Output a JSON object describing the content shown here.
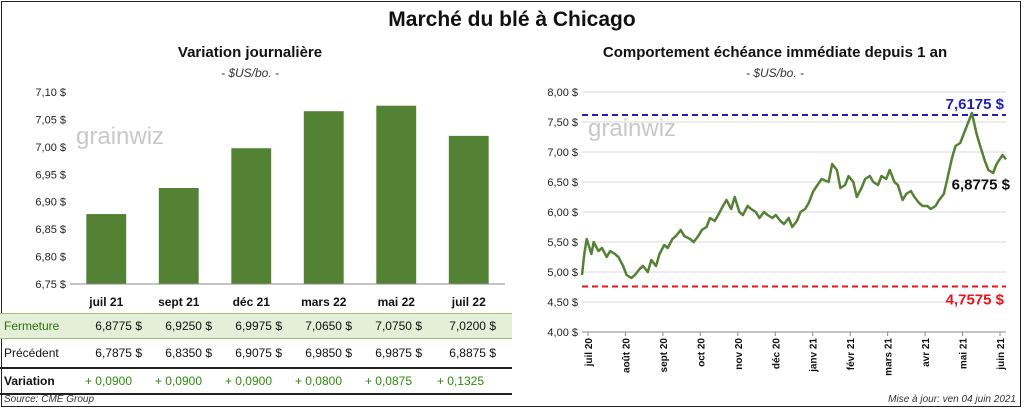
{
  "main_title": "Marché du blé à Chicago",
  "left": {
    "title": "Variation  journalière",
    "unit": "- $US/bo. -"
  },
  "right": {
    "title": "Comportement  échéance  immédiate  depuis  1  an",
    "unit": "- $US/bo. -"
  },
  "watermark": "grainwiz",
  "chart_data": [
    {
      "type": "bar",
      "categories": [
        "juil 21",
        "sept 21",
        "déc 21",
        "mars 22",
        "mai 22",
        "juil 22"
      ],
      "values": [
        6.8775,
        6.925,
        6.9975,
        7.065,
        7.075,
        7.02
      ],
      "ylim": [
        6.75,
        7.1
      ],
      "yticks": [
        "6,75 $",
        "6,80 $",
        "6,85 $",
        "6,90 $",
        "6,95 $",
        "7,00 $",
        "7,05 $",
        "7,10 $"
      ],
      "grid": false,
      "bar_color": "#548235"
    },
    {
      "type": "line",
      "ylim": [
        4.0,
        8.0
      ],
      "yticks": [
        "4,00 $",
        "4,50 $",
        "5,00 $",
        "5,50 $",
        "6,00 $",
        "6,50 $",
        "7,00 $",
        "7,50 $",
        "8,00 $"
      ],
      "xticks": [
        "juil 20",
        "août 20",
        "sept 20",
        "oct 20",
        "nov 20",
        "déc 20",
        "janv 21",
        "févr 21",
        "mars 21",
        "avr 21",
        "mai 21",
        "juin 21"
      ],
      "grid": true,
      "line_color": "#548235",
      "series": [
        {
          "x": [
            "2020-06-08",
            "2020-06-10",
            "2020-06-12",
            "2020-06-16",
            "2020-06-18",
            "2020-06-22",
            "2020-06-25",
            "2020-06-29",
            "2020-07-02",
            "2020-07-06",
            "2020-07-09",
            "2020-07-13",
            "2020-07-16",
            "2020-07-20",
            "2020-07-23",
            "2020-07-27",
            "2020-07-30",
            "2020-08-03",
            "2020-08-06",
            "2020-08-10",
            "2020-08-13",
            "2020-08-17",
            "2020-08-20",
            "2020-08-24",
            "2020-08-27",
            "2020-08-31",
            "2020-09-03",
            "2020-09-08",
            "2020-09-11",
            "2020-09-15",
            "2020-09-18",
            "2020-09-22",
            "2020-09-25",
            "2020-09-29",
            "2020-10-02",
            "2020-10-06",
            "2020-10-09",
            "2020-10-13",
            "2020-10-16",
            "2020-10-20",
            "2020-10-23",
            "2020-10-27",
            "2020-10-30",
            "2020-11-03",
            "2020-11-06",
            "2020-11-10",
            "2020-11-13",
            "2020-11-17",
            "2020-11-20",
            "2020-11-24",
            "2020-11-27",
            "2020-12-01",
            "2020-12-04",
            "2020-12-08",
            "2020-12-11",
            "2020-12-15",
            "2020-12-18",
            "2020-12-22",
            "2020-12-29",
            "2021-01-04",
            "2021-01-07",
            "2021-01-11",
            "2021-01-14",
            "2021-01-18",
            "2021-01-21",
            "2021-01-25",
            "2021-01-28",
            "2021-02-01",
            "2021-02-04",
            "2021-02-08",
            "2021-02-11",
            "2021-02-15",
            "2021-02-18",
            "2021-02-22",
            "2021-02-25",
            "2021-03-01",
            "2021-03-04",
            "2021-03-08",
            "2021-03-11",
            "2021-03-15",
            "2021-03-18",
            "2021-03-22",
            "2021-03-25",
            "2021-03-29",
            "2021-04-01",
            "2021-04-05",
            "2021-04-08",
            "2021-04-12",
            "2021-04-15",
            "2021-04-19",
            "2021-04-22",
            "2021-04-26",
            "2021-04-29",
            "2021-05-03",
            "2021-05-06",
            "2021-05-10",
            "2021-05-13",
            "2021-05-17",
            "2021-05-20",
            "2021-05-24",
            "2021-05-27",
            "2021-06-01",
            "2021-06-04"
          ],
          "values": [
            4.95,
            5.3,
            5.55,
            5.3,
            5.5,
            5.35,
            5.4,
            5.25,
            5.35,
            5.3,
            5.25,
            5.1,
            4.95,
            4.9,
            4.95,
            5.05,
            5.1,
            5.0,
            5.2,
            5.1,
            5.3,
            5.45,
            5.4,
            5.55,
            5.6,
            5.7,
            5.6,
            5.55,
            5.5,
            5.6,
            5.7,
            5.75,
            5.9,
            5.85,
            5.95,
            6.1,
            6.2,
            6.05,
            6.25,
            6.0,
            5.95,
            6.1,
            6.05,
            6.0,
            5.9,
            6.0,
            5.95,
            5.9,
            5.95,
            5.85,
            5.8,
            5.9,
            5.75,
            5.85,
            6.0,
            6.05,
            6.15,
            6.35,
            6.55,
            6.5,
            6.8,
            6.7,
            6.4,
            6.45,
            6.6,
            6.5,
            6.25,
            6.4,
            6.55,
            6.6,
            6.5,
            6.45,
            6.6,
            6.55,
            6.7,
            6.5,
            6.45,
            6.2,
            6.3,
            6.35,
            6.25,
            6.15,
            6.1,
            6.1,
            6.05,
            6.1,
            6.2,
            6.3,
            6.55,
            6.9,
            7.1,
            7.15,
            7.3,
            7.5,
            7.65,
            7.3,
            7.1,
            6.85,
            6.7,
            6.65,
            6.8,
            6.95,
            6.8775
          ]
        }
      ],
      "annotations": [
        {
          "value": 7.6175,
          "label": "7,6175 $",
          "color": "#1f1fb4"
        },
        {
          "value": 4.7575,
          "label": "4,7575 $",
          "color": "#e8141c"
        },
        {
          "value": 6.8775,
          "label": "6,8775 $",
          "color": "#111111"
        }
      ]
    }
  ],
  "table": {
    "columns": [
      "juil 21",
      "sept 21",
      "déc 21",
      "mars 22",
      "mai 22",
      "juil 22"
    ],
    "rows": [
      {
        "label": "Fermeture",
        "values": [
          "6,8775  $",
          "6,9250  $",
          "6,9975  $",
          "7,0650  $",
          "7,0750  $",
          "7,0200  $"
        ]
      },
      {
        "label": "Précédent",
        "values": [
          "6,7875  $",
          "6,8350  $",
          "6,9075  $",
          "6,9850  $",
          "6,9875  $",
          "6,8875  $"
        ]
      },
      {
        "label": "Variation",
        "values": [
          "+ 0,0900",
          "+ 0,0900",
          "+ 0,0900",
          "+ 0,0800",
          "+ 0,0875",
          "+ 0,1325"
        ]
      }
    ]
  },
  "source": "Source: CME Group",
  "updated": "Mise à jour: ven 04 juin 2021"
}
